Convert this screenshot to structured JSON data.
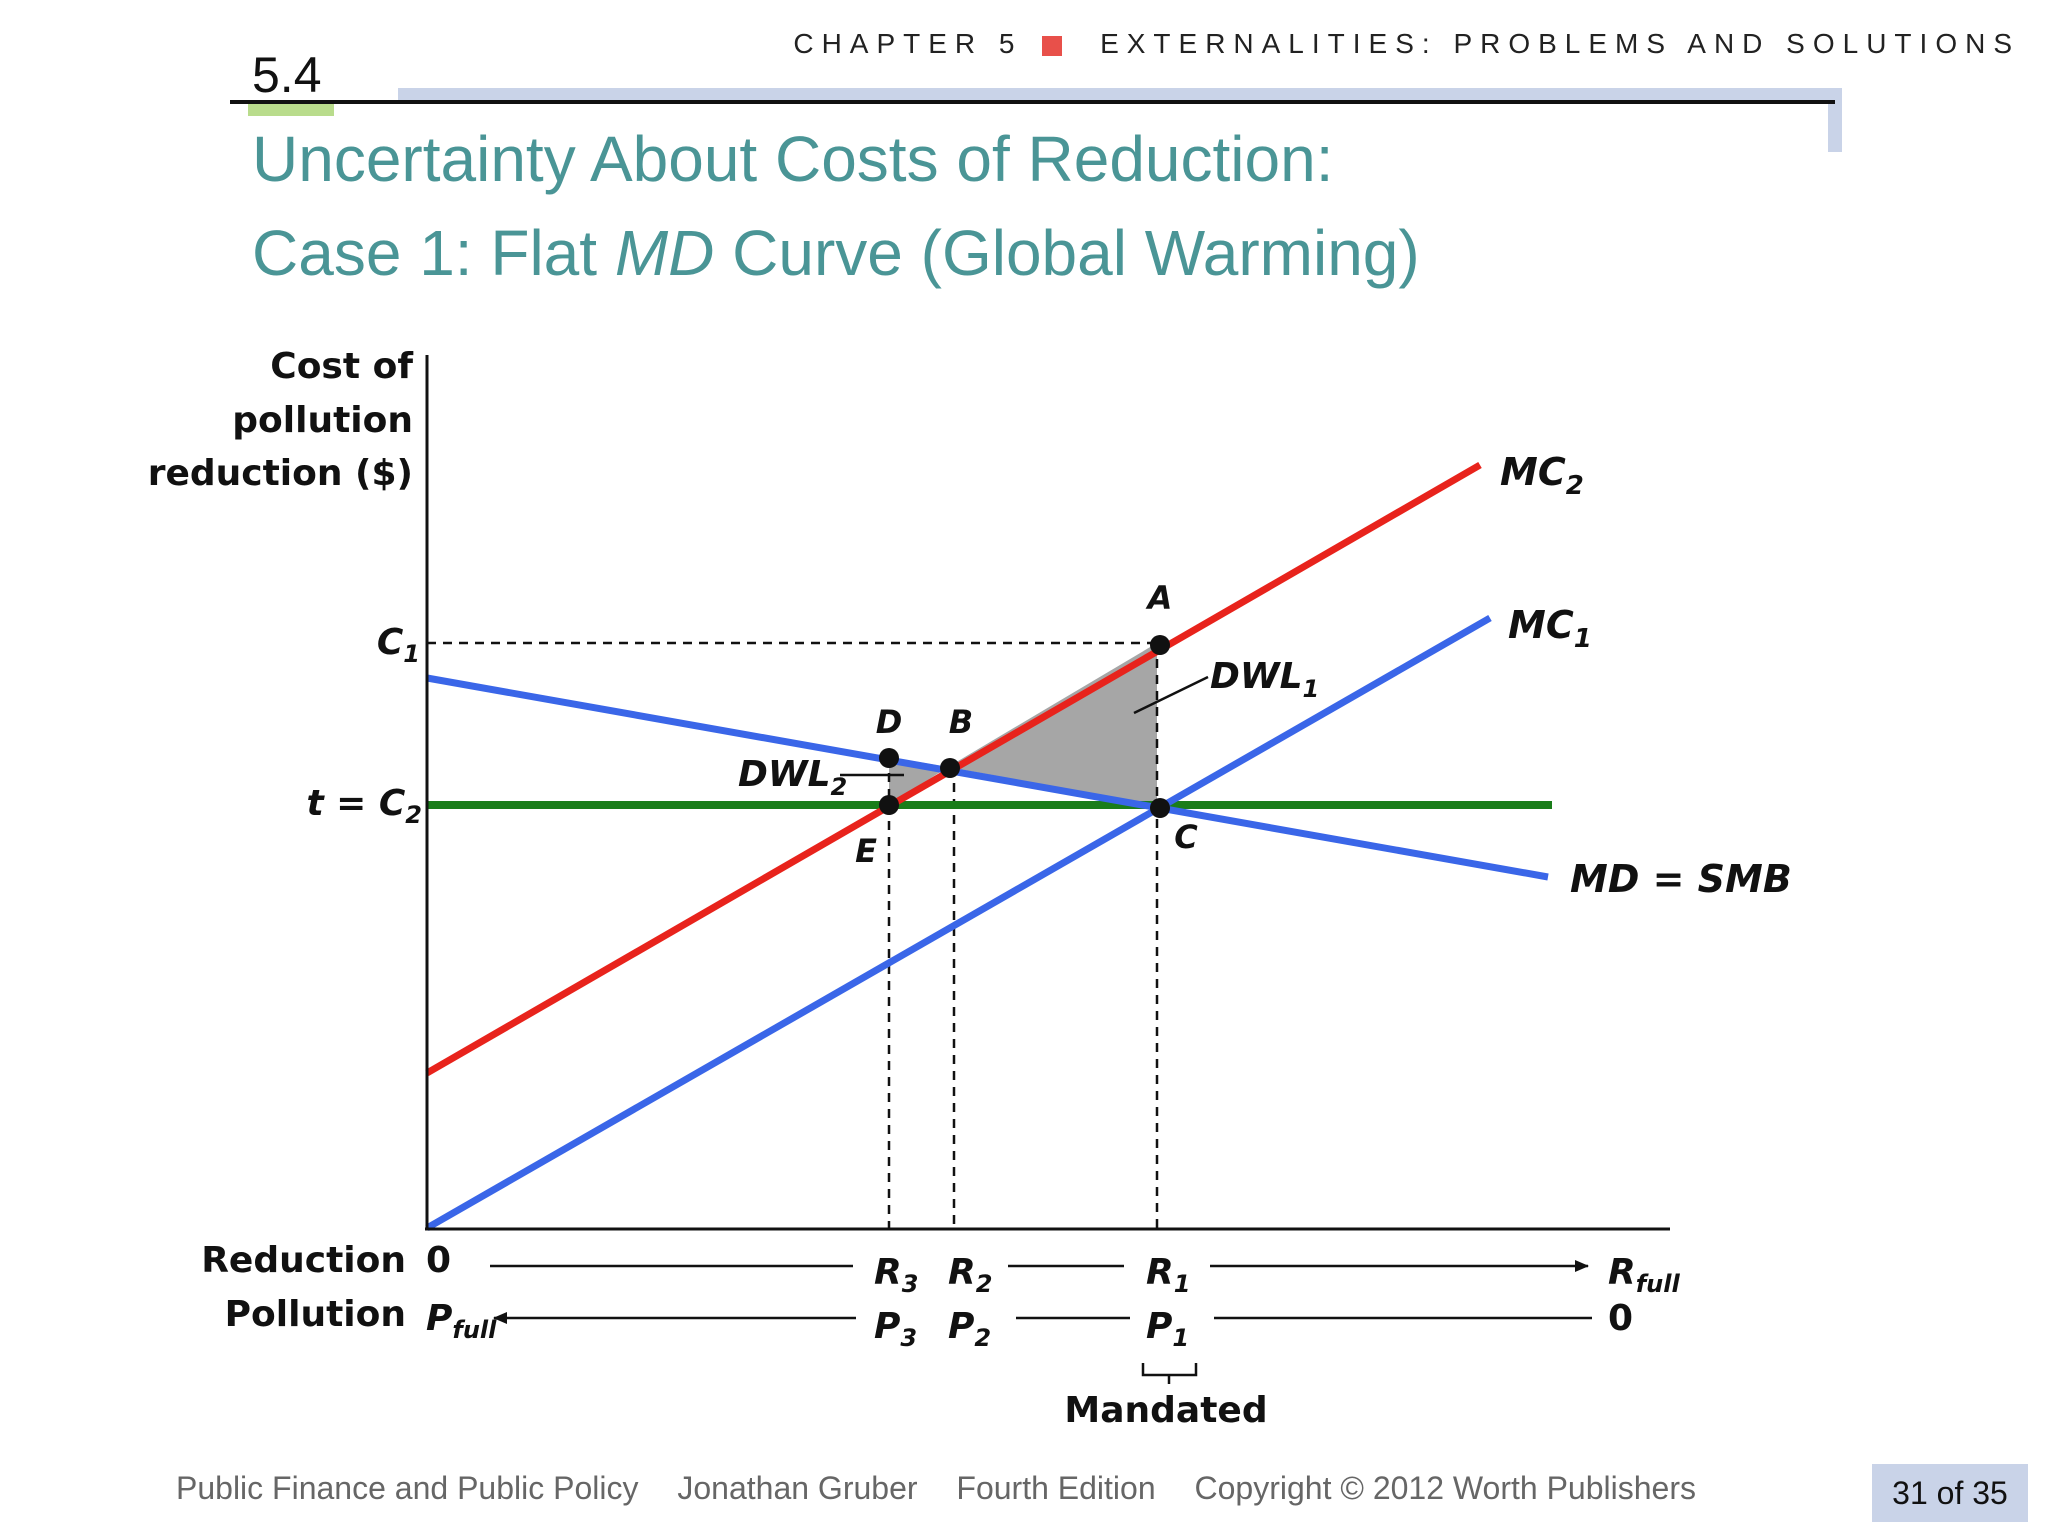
{
  "header": {
    "chapter": "CHAPTER 5",
    "chapter_topic": "EXTERNALITIES: PROBLEMS AND SOLUTIONS",
    "section_number": "5.4",
    "title_line1": "Uncertainty About Costs of Reduction:",
    "title_line2_pre": "Case 1: Flat ",
    "title_line2_italic": "MD",
    "title_line2_post": " Curve (Global Warming)"
  },
  "diagram": {
    "y_axis_label": [
      "Cost of",
      "pollution",
      "reduction ($)"
    ],
    "y_ticks": {
      "c1": "C",
      "c1_sub": "1",
      "t_c2_pre": "t = C",
      "t_c2_sub": "2"
    },
    "curves": {
      "mc2": "MC",
      "mc2_sub": "2",
      "mc1": "MC",
      "mc1_sub": "1",
      "md": "MD = SMB"
    },
    "points": {
      "a": "A",
      "b": "B",
      "c": "C",
      "d": "D",
      "e": "E"
    },
    "regions": {
      "dwl1": "DWL",
      "dwl1_sub": "1",
      "dwl2": "DWL",
      "dwl2_sub": "2"
    },
    "reduction_row": {
      "label": "Reduction",
      "start": "0",
      "r3": "R",
      "r3_sub": "3",
      "r2": "R",
      "r2_sub": "2",
      "r1": "R",
      "r1_sub": "1",
      "rfull": "R",
      "rfull_sub": "full"
    },
    "pollution_row": {
      "label": "Pollution",
      "pfull": "P",
      "pfull_sub": "full",
      "p3": "P",
      "p3_sub": "3",
      "p2": "P",
      "p2_sub": "2",
      "p1": "P",
      "p1_sub": "1",
      "end": "0"
    },
    "mandated": "Mandated",
    "colors": {
      "mc2": "#e8231c",
      "mc1": "#3a66e8",
      "md": "#3a66e8",
      "tax": "#1a7d1a",
      "dwl": "#a6a6a6"
    }
  },
  "footer": {
    "book": "Public Finance and Public Policy",
    "author": "Jonathan  Gruber",
    "edition": "Fourth  Edition",
    "copyright": "Copyright © 2012  Worth Publishers",
    "page": "31 of 35"
  }
}
